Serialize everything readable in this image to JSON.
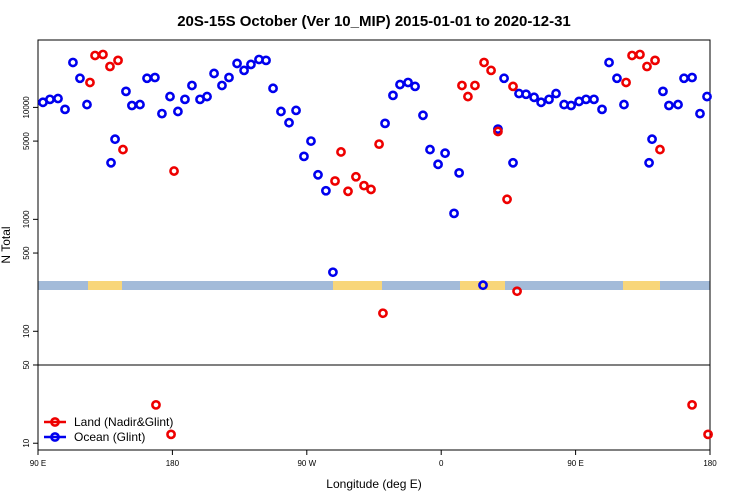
{
  "chart_data": {
    "type": "scatter",
    "title": "20S-15S October (Ver 10_MIP)   2015-01-01 to 2020-12-31",
    "x_label": "Longitude (deg E)",
    "y_label": "N Total",
    "log_y": true,
    "legend": "lower left",
    "hline": 50,
    "xlim": [
      90,
      540
    ],
    "ylim": [
      8.7,
      40000
    ],
    "xticks": [
      {
        "value": 90,
        "label": "90 E"
      },
      180,
      {
        "value": 270,
        "label": "90 W"
      },
      {
        "value": 360,
        "label": "0"
      },
      {
        "value": 450,
        "label": "90 E"
      },
      {
        "value": 540,
        "label": "180"
      }
    ],
    "yticks": [
      10,
      50,
      100,
      500,
      1000,
      5000,
      10000
    ],
    "series": [
      {
        "name": "Land (Nadir&Glint)",
        "color": "#ee0000",
        "x": [
          124.8,
          128.2,
          133.5,
          138.2,
          143.6,
          146.9,
          169,
          179.1,
          181.1,
          288.9,
          292.9,
          297.6,
          302.9,
          308.3,
          313,
          318.4,
          321,
          373.9,
          377.9,
          382.6,
          388.7,
          393.4,
          398,
          404.1,
          408.1,
          410.8,
          483.8,
          487.8,
          493.1,
          497.8,
          503.2,
          506.5,
          528,
          538.7
        ],
        "values": [
          16700,
          29100,
          29700,
          23200,
          26300,
          4200,
          22,
          12,
          2700,
          2200,
          4000,
          1780,
          2400,
          2000,
          1850,
          4700,
          145,
          15700,
          12500,
          15700,
          25200,
          21400,
          6100,
          1510,
          15400,
          228,
          16700,
          29100,
          29700,
          23200,
          26300,
          4200,
          22,
          12
        ]
      },
      {
        "name": "Ocean (Glint)",
        "color": "#0000ee",
        "x": [
          93.3,
          98,
          103.4,
          108.1,
          113.4,
          118.1,
          122.8,
          138.9,
          141.6,
          148.9,
          152.9,
          158.3,
          163,
          168.3,
          173,
          178.4,
          183.7,
          188.4,
          193.1,
          198.5,
          203.2,
          207.9,
          213.2,
          217.9,
          223.3,
          228,
          232.6,
          238,
          242.7,
          247.4,
          252.7,
          258.1,
          262.8,
          268.1,
          272.8,
          277.5,
          282.8,
          287.5,
          322.4,
          327.7,
          332.4,
          337.8,
          342.5,
          347.8,
          352.5,
          357.9,
          362.6,
          368.6,
          372,
          388,
          398,
          402.1,
          408.1,
          412.1,
          416.8,
          422.2,
          426.9,
          432.2,
          436.9,
          442.3,
          447,
          452.3,
          457,
          462.3,
          467.7,
          472.4,
          477.7,
          482.4,
          499.2,
          501.2,
          508.5,
          512.5,
          518.6,
          522.6,
          528,
          533.3,
          538
        ],
        "values": [
          11100,
          11800,
          12000,
          9600,
          25200,
          18200,
          10600,
          3200,
          5200,
          13900,
          10400,
          10600,
          18200,
          18500,
          8800,
          12500,
          9200,
          11800,
          15700,
          11800,
          12500,
          20100,
          15700,
          18500,
          24700,
          21400,
          24200,
          26800,
          26300,
          14800,
          9200,
          7300,
          9400,
          3650,
          5000,
          2500,
          1800,
          337,
          7200,
          12800,
          16000,
          16700,
          15400,
          8500,
          4200,
          3100,
          3900,
          1130,
          2600,
          258,
          6400,
          18200,
          3200,
          13300,
          13100,
          12300,
          11100,
          11800,
          13300,
          10600,
          10400,
          11300,
          11800,
          11800,
          9600,
          25200,
          18200,
          10600,
          3200,
          5200,
          13900,
          10400,
          10600,
          18200,
          18500,
          8800,
          12500
        ]
      }
    ]
  }
}
